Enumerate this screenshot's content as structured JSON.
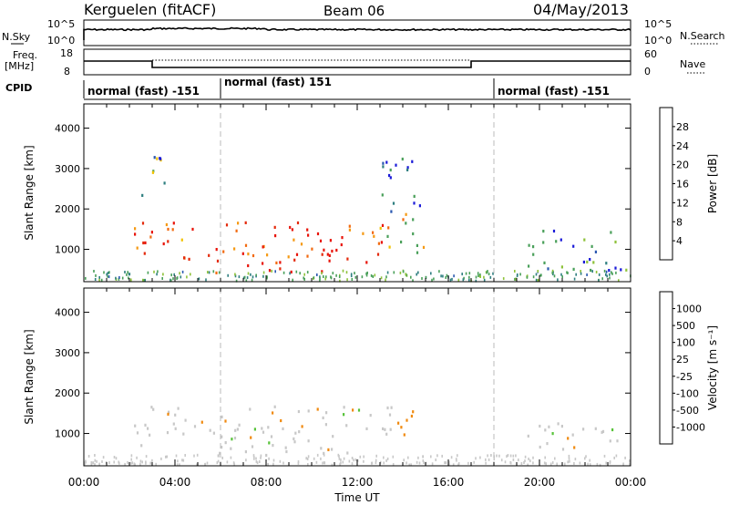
{
  "header": {
    "station": "Kerguelen (fitACF)",
    "beam": "Beam 06",
    "date": "04/May/2013"
  },
  "strip_labels": {
    "nsky": "N.Sky",
    "nsearch": "N.Search",
    "freq": "Freq.",
    "freq_unit": "[MHz]",
    "nave": "Nave",
    "cpid": "CPID",
    "nsky_top": "10^5",
    "nsky_bottom": "10^0",
    "nsearch_top": "10^5",
    "nsearch_bottom": "10^0",
    "freq_top": "18",
    "freq_bottom": "8",
    "nave_top": "60",
    "nave_bottom": "0"
  },
  "cpid_segments": [
    {
      "label": "normal (fast) -151",
      "start_h": 0
    },
    {
      "label": "normal (fast) 151",
      "start_h": 6
    },
    {
      "label": "normal (fast) -151",
      "start_h": 18
    }
  ],
  "chart_data": [
    {
      "type": "heatmap",
      "name": "power",
      "ylabel": "Slant Range [km]",
      "xlabel": "",
      "xlim": [
        0,
        24
      ],
      "ylim": [
        200,
        4600
      ],
      "yticks": [
        "1000",
        "2000",
        "3000",
        "4000"
      ],
      "xticks": [
        "00:00",
        "04:00",
        "08:00",
        "12:00",
        "16:00",
        "20:00",
        "00:00"
      ],
      "colorbar": {
        "label": "Power [dB]",
        "ticks": [
          "4",
          "8",
          "12",
          "16",
          "20",
          "24",
          "28"
        ],
        "colors": [
          "#1a1ad8",
          "#2a58b0",
          "#2f7f80",
          "#4aa05a",
          "#8ec23a",
          "#f2c200",
          "#f59a14",
          "#f26a10",
          "#e42a0c",
          "#e8140a"
        ]
      },
      "regions": [
        {
          "t0": 2.2,
          "t1": 13.5,
          "r0": 700,
          "r1": 1700,
          "value": 24
        },
        {
          "t0": 5.7,
          "t1": 11.6,
          "r0": 450,
          "r1": 800,
          "value": 28
        },
        {
          "t0": 13.2,
          "t1": 15.0,
          "r0": 900,
          "r1": 1900,
          "value": 16
        },
        {
          "t0": 13.0,
          "t1": 14.8,
          "r0": 1900,
          "r1": 3400,
          "value": 6
        },
        {
          "t0": 19.3,
          "t1": 23.9,
          "r0": 500,
          "r1": 1500,
          "value": 7
        },
        {
          "t0": 2.5,
          "t1": 3.6,
          "r0": 2200,
          "r1": 3500,
          "value": 9
        }
      ]
    },
    {
      "type": "heatmap",
      "name": "velocity",
      "ylabel": "Slant Range [km]",
      "xlabel": "Time UT",
      "xlim": [
        0,
        24
      ],
      "ylim": [
        200,
        4600
      ],
      "yticks": [
        "1000",
        "2000",
        "3000",
        "4000"
      ],
      "xticks": [
        "00:00",
        "04:00",
        "08:00",
        "12:00",
        "16:00",
        "20:00",
        "00:00"
      ],
      "colorbar": {
        "label": "Velocity [m s⁻¹]",
        "ticks": [
          "1000",
          "500",
          "100",
          "25",
          "-25",
          "-100",
          "-500",
          "-1000"
        ],
        "colors": [
          "#1a3fa8",
          "#2e6fb0",
          "#3a8a5a",
          "#58c33a",
          "#c8c8c8",
          "#c8c8c8",
          "#f0b020",
          "#f08a10",
          "#e84a10",
          "#e01010"
        ]
      },
      "regions": [
        {
          "t0": 2.2,
          "t1": 13.5,
          "r0": 700,
          "r1": 1700,
          "value": 0
        },
        {
          "t0": 5.7,
          "t1": 11.6,
          "r0": 450,
          "r1": 800,
          "value": 0
        },
        {
          "t0": 13.2,
          "t1": 14.8,
          "r0": 1000,
          "r1": 1600,
          "value": -150
        },
        {
          "t0": 19.3,
          "t1": 23.9,
          "r0": 600,
          "r1": 1300,
          "value": 0
        }
      ]
    }
  ],
  "colors": {
    "axis": "#000000",
    "dashed_marker": "#bbbbbb"
  }
}
